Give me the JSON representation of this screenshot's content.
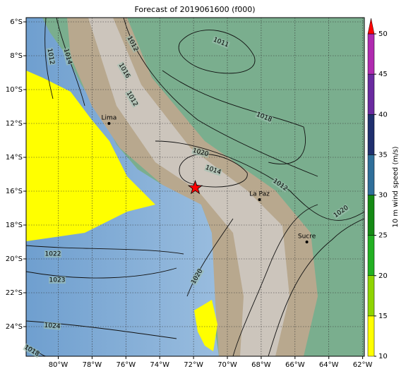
{
  "title": "Forecast of 2019061600 (f000)",
  "map": {
    "xlim": [
      -81.9,
      -61.9
    ],
    "ylim": [
      -25.75,
      -5.75
    ],
    "xticks": [
      {
        "value": -80,
        "label": "80°W"
      },
      {
        "value": -78,
        "label": "78°W"
      },
      {
        "value": -76,
        "label": "76°W"
      },
      {
        "value": -74,
        "label": "74°W"
      },
      {
        "value": -72,
        "label": "72°W"
      },
      {
        "value": -70,
        "label": "70°W"
      },
      {
        "value": -68,
        "label": "68°W"
      },
      {
        "value": -66,
        "label": "66°W"
      },
      {
        "value": -64,
        "label": "64°W"
      },
      {
        "value": -62,
        "label": "62°W"
      }
    ],
    "yticks": [
      {
        "value": -6,
        "label": "6°S"
      },
      {
        "value": -8,
        "label": "8°S"
      },
      {
        "value": -10,
        "label": "10°S"
      },
      {
        "value": -12,
        "label": "12°S"
      },
      {
        "value": -14,
        "label": "14°S"
      },
      {
        "value": -16,
        "label": "16°S"
      },
      {
        "value": -18,
        "label": "18°S"
      },
      {
        "value": -20,
        "label": "20°S"
      },
      {
        "value": -22,
        "label": "22°S"
      },
      {
        "value": -24,
        "label": "24°S"
      }
    ],
    "grid": true,
    "cities": [
      {
        "name": "Lima",
        "lon": -77.0,
        "lat": -12.0
      },
      {
        "name": "La Paz",
        "lon": -68.1,
        "lat": -16.5
      },
      {
        "name": "Sucre",
        "lon": -65.3,
        "lat": -19.0
      }
    ],
    "star": {
      "lon": -71.9,
      "lat": -15.8,
      "color": "#ff0000"
    },
    "contour_labels": [
      1012,
      1014,
      1012,
      1016,
      1012,
      1011,
      1018,
      1020,
      1014,
      1012,
      1020,
      1022,
      1023,
      1024,
      1018,
      1020
    ]
  },
  "colorbar": {
    "label": "10 m wind speed (m/s)",
    "ticks": [
      10,
      15,
      20,
      25,
      30,
      35,
      40,
      45,
      50
    ],
    "colors": [
      "#ffff00",
      "#8fd400",
      "#22b022",
      "#158a15",
      "#2f6f9a",
      "#1f2f6f",
      "#6a2aa0",
      "#b02ab0"
    ],
    "extend_color": "#ff0000"
  }
}
